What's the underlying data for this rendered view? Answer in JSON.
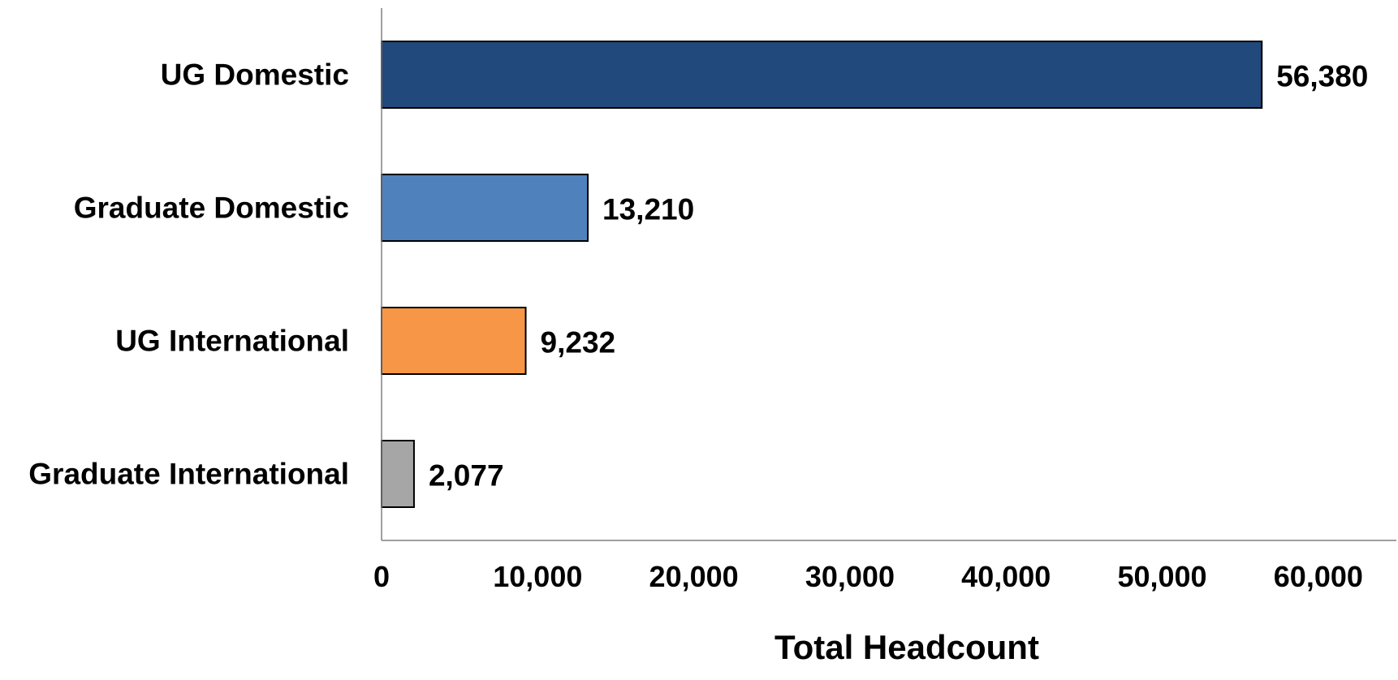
{
  "chart_data": {
    "type": "bar",
    "orientation": "horizontal",
    "categories": [
      "UG Domestic",
      "Graduate Domestic",
      "UG International",
      "Graduate International"
    ],
    "values": [
      56380,
      13210,
      9232,
      2077
    ],
    "value_labels": [
      "56,380",
      "13,210",
      "9,232",
      "2,077"
    ],
    "colors": [
      "#21497b",
      "#4f81bd",
      "#f79646",
      "#a6a6a6"
    ],
    "xlabel": "Total Headcount",
    "ylabel": "",
    "title": "",
    "xlim": [
      0,
      65000
    ],
    "x_ticks": [
      0,
      10000,
      20000,
      30000,
      40000,
      50000,
      60000
    ],
    "x_tick_labels": [
      "0",
      "10,000",
      "20,000",
      "30,000",
      "40,000",
      "50,000",
      "60,000"
    ],
    "grid": false,
    "legend": "none"
  }
}
